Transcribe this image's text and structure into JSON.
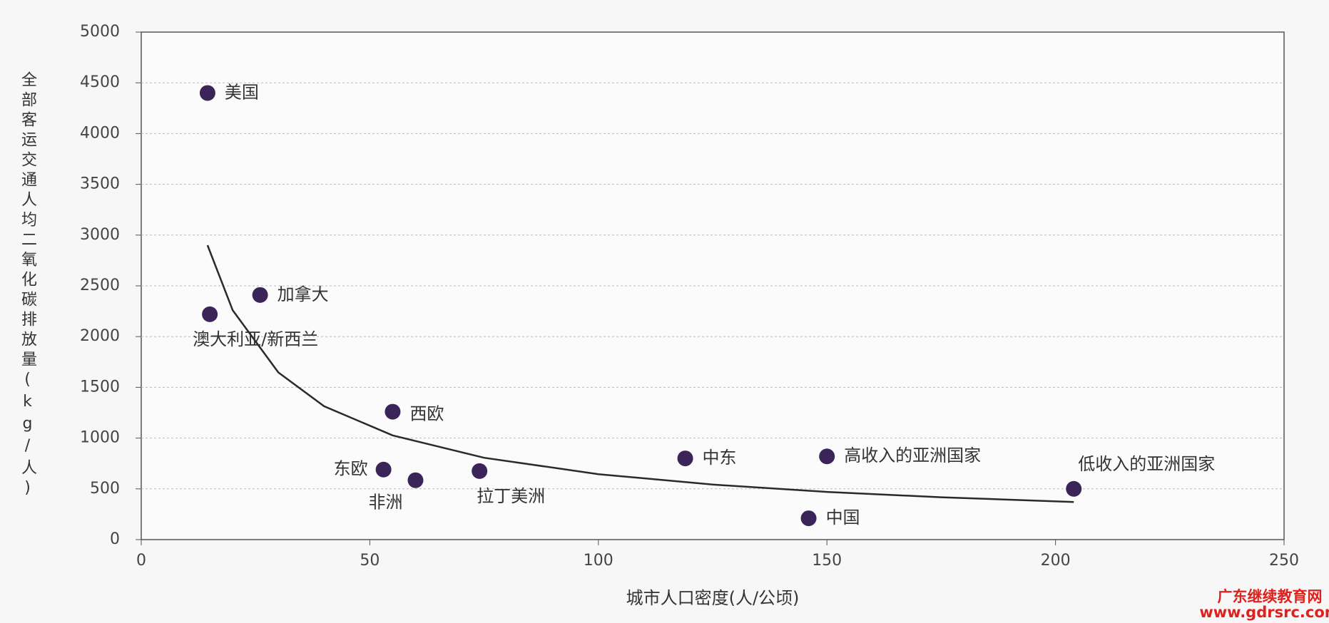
{
  "chart_data": {
    "type": "scatter",
    "xlabel": "城市人口密度(人/公顷)",
    "ylabel": "全部客运交通人均二氧化碳排放量(kg/人)",
    "labels": [
      "美国",
      "加拿大",
      "澳大利亚/新西兰",
      "西欧",
      "东欧",
      "非洲",
      "拉丁美洲",
      "中东",
      "高收入的亚洲国家",
      "中国",
      "低收入的亚洲国家"
    ],
    "x": [
      14.5,
      26,
      15,
      55,
      53,
      60,
      74,
      119,
      150,
      146,
      204
    ],
    "y": [
      4400,
      2410,
      2220,
      1260,
      690,
      585,
      675,
      800,
      820,
      210,
      500
    ],
    "color": "#3a2458",
    "trendline": {
      "x": [
        14.5,
        20,
        30,
        40,
        55,
        75,
        100,
        125,
        150,
        175,
        204
      ],
      "y": [
        2900,
        2259,
        1647,
        1314,
        1027,
        806,
        645,
        542,
        470,
        417,
        370
      ],
      "color": "#2a2a2a"
    },
    "xlim": [
      0,
      250
    ],
    "xticks": [
      0,
      50,
      100,
      150,
      200,
      250
    ],
    "ylim": [
      0,
      5000
    ],
    "yticks": [
      0,
      500,
      1000,
      1500,
      2000,
      2500,
      3000,
      3500,
      4000,
      4500,
      5000
    ],
    "grid": true
  },
  "watermark": {
    "line1": "广东继续教育网",
    "line2": "www.gdrsrc.com"
  }
}
